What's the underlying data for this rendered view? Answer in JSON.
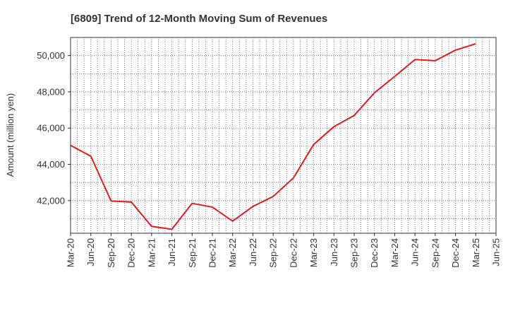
{
  "chart_data": {
    "type": "line",
    "title": "[6809]  Trend of 12-Month Moving Sum of Revenues",
    "xlabel": "",
    "ylabel": "Amount (million yen)",
    "grid": true,
    "legend": "none",
    "line_color": "#e31a1c",
    "categories": [
      "Mar-20",
      "Jun-20",
      "Sep-20",
      "Dec-20",
      "Mar-21",
      "Jun-21",
      "Sep-21",
      "Dec-21",
      "Mar-22",
      "Jun-22",
      "Sep-22",
      "Dec-22",
      "Mar-23",
      "Jun-23",
      "Sep-23",
      "Dec-23",
      "Mar-24",
      "Jun-24",
      "Sep-24",
      "Dec-24",
      "Mar-25",
      "Jun-25"
    ],
    "y_ticks": [
      42000,
      44000,
      46000,
      48000,
      50000
    ],
    "y_tick_labels": [
      "42,000",
      "44,000",
      "46,000",
      "48,000",
      "50,000"
    ],
    "ylim": [
      40200,
      51000
    ],
    "series": [
      {
        "values": [
          45050,
          44450,
          41980,
          41920,
          40580,
          40420,
          41850,
          41640,
          40870,
          41680,
          42230,
          43250,
          45100,
          46080,
          46700,
          47950,
          48850,
          49780,
          49720,
          50300,
          50650,
          null
        ]
      }
    ]
  }
}
